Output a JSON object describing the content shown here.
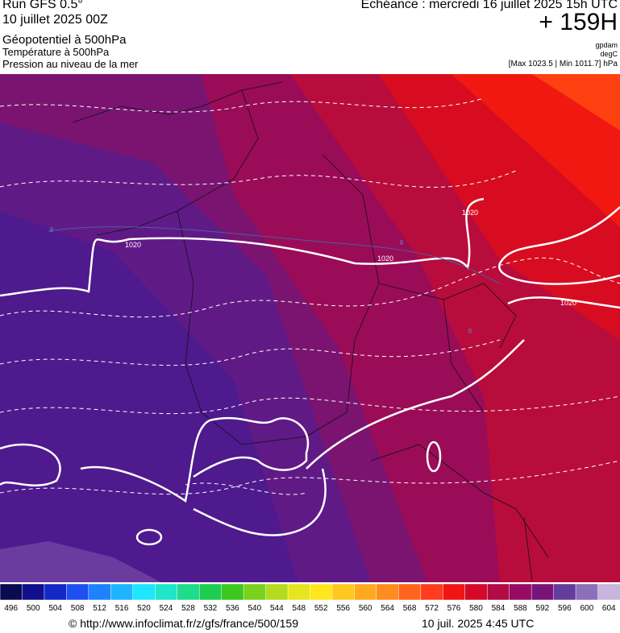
{
  "header": {
    "run": "Run GFS 0.5°",
    "date": "10 juillet 2025 00Z",
    "field1": "Géopotentiel à 500hPa",
    "field2": "Température à 500hPa",
    "field3": "Pression au niveau de la mer",
    "echeance": "Echéance : mercredi 16 juillet 2025 15h UTC",
    "offset": "+ 159H",
    "unit1": "gpdam",
    "unit2": "degC",
    "range": "[Max 1023.5 | Min 1011.7] hPa"
  },
  "map": {
    "isobar_labels": [
      "1020",
      "1020",
      "1020",
      "1020"
    ],
    "isotherm_labels": [
      "8",
      "8",
      "8"
    ]
  },
  "colorbar": {
    "labels": [
      "496",
      "500",
      "504",
      "508",
      "512",
      "516",
      "520",
      "524",
      "528",
      "532",
      "536",
      "540",
      "544",
      "548",
      "552",
      "556",
      "560",
      "564",
      "568",
      "572",
      "576",
      "580",
      "584",
      "588",
      "592",
      "596",
      "600",
      "604"
    ],
    "colors": [
      "#0a0a50",
      "#10108c",
      "#1428c8",
      "#1e50f0",
      "#1e82ff",
      "#1eb4ff",
      "#1ee6ff",
      "#1ee6c8",
      "#1edc8c",
      "#1ecd50",
      "#3cc81e",
      "#78d21e",
      "#b4dc1e",
      "#e6e61e",
      "#ffe61e",
      "#ffc81e",
      "#ffaa1e",
      "#ff8c1e",
      "#ff641e",
      "#ff3c1e",
      "#f01414",
      "#d20a28",
      "#b40a46",
      "#960a64",
      "#781478",
      "#643c9b",
      "#8c6eb9",
      "#c8b4dc"
    ]
  },
  "footer": {
    "url": "© http://www.infoclimat.fr/z/gfs/france/500/159",
    "time": "10 juil. 2025  4:45 UTC"
  }
}
